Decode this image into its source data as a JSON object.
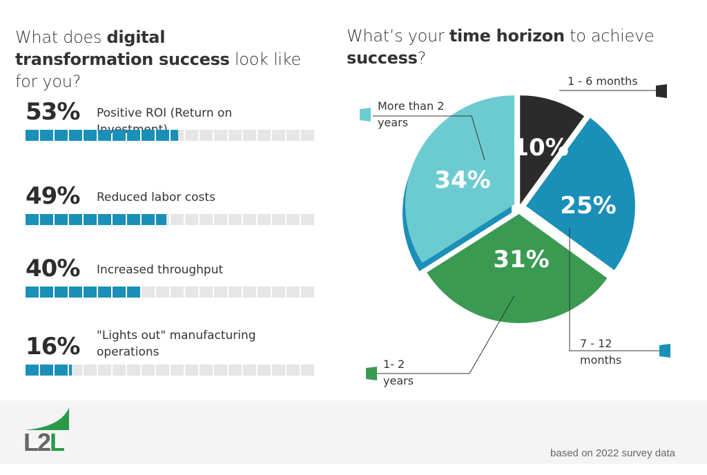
{
  "left": {
    "title_pre": "What does ",
    "title_bold": "digital transformation success",
    "title_post": " look like for you?",
    "items": [
      {
        "pct": "53%",
        "value": 53,
        "label": "Positive ROI (Return on Investment)"
      },
      {
        "pct": "49%",
        "value": 49,
        "label": "Reduced labor costs"
      },
      {
        "pct": "40%",
        "value": 40,
        "label": "Increased throughput"
      },
      {
        "pct": "16%",
        "value": 16,
        "label": "\"Lights out\" manufacturing operations"
      }
    ]
  },
  "right": {
    "title_pre": "What’s your ",
    "title_bold": "time horizon",
    "title_mid": " to achieve ",
    "title_bold2": "success",
    "title_post": "?"
  },
  "chart_data": {
    "type": "pie",
    "title": "What’s your time horizon to achieve success?",
    "categories": [
      "1 - 6 months",
      "7 - 12 months",
      "1- 2 years",
      "More than 2 years"
    ],
    "values": [
      10,
      25,
      31,
      34
    ],
    "labels": [
      "10%",
      "25%",
      "31%",
      "34%"
    ],
    "colors": [
      "#2b2b2b",
      "#1a8fb8",
      "#3b9a52",
      "#6ccbd0"
    ]
  },
  "footer": {
    "logo": "L2L",
    "note": "based on 2022 survey data"
  },
  "colors": {
    "bar_fill": "#1a8fb8",
    "bar_empty": "#e6e6e6",
    "footer_bg": "#f4f4f4"
  }
}
